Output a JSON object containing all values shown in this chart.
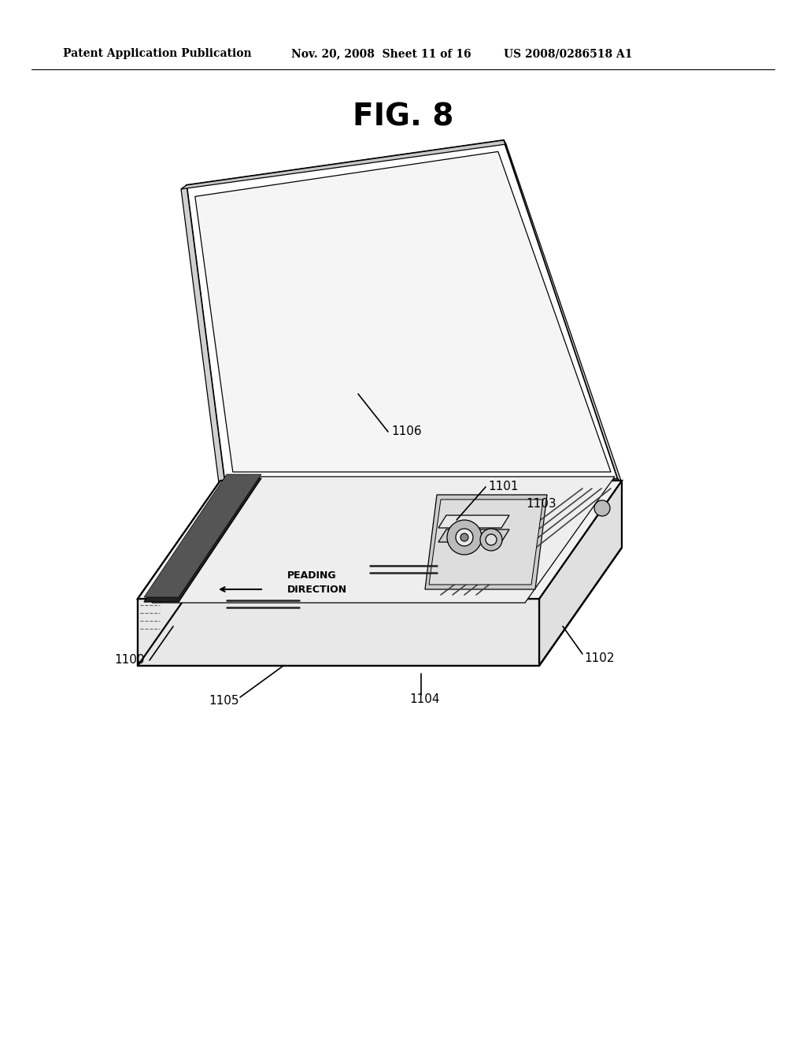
{
  "background_color": "#ffffff",
  "header_text": "Patent Application Publication",
  "header_date": "Nov. 20, 2008  Sheet 11 of 16",
  "header_patent": "US 2008/0286518 A1",
  "figure_label": "FIG. 8",
  "lw_main": 1.6,
  "lw_thin": 0.9,
  "lw_thick": 2.2
}
